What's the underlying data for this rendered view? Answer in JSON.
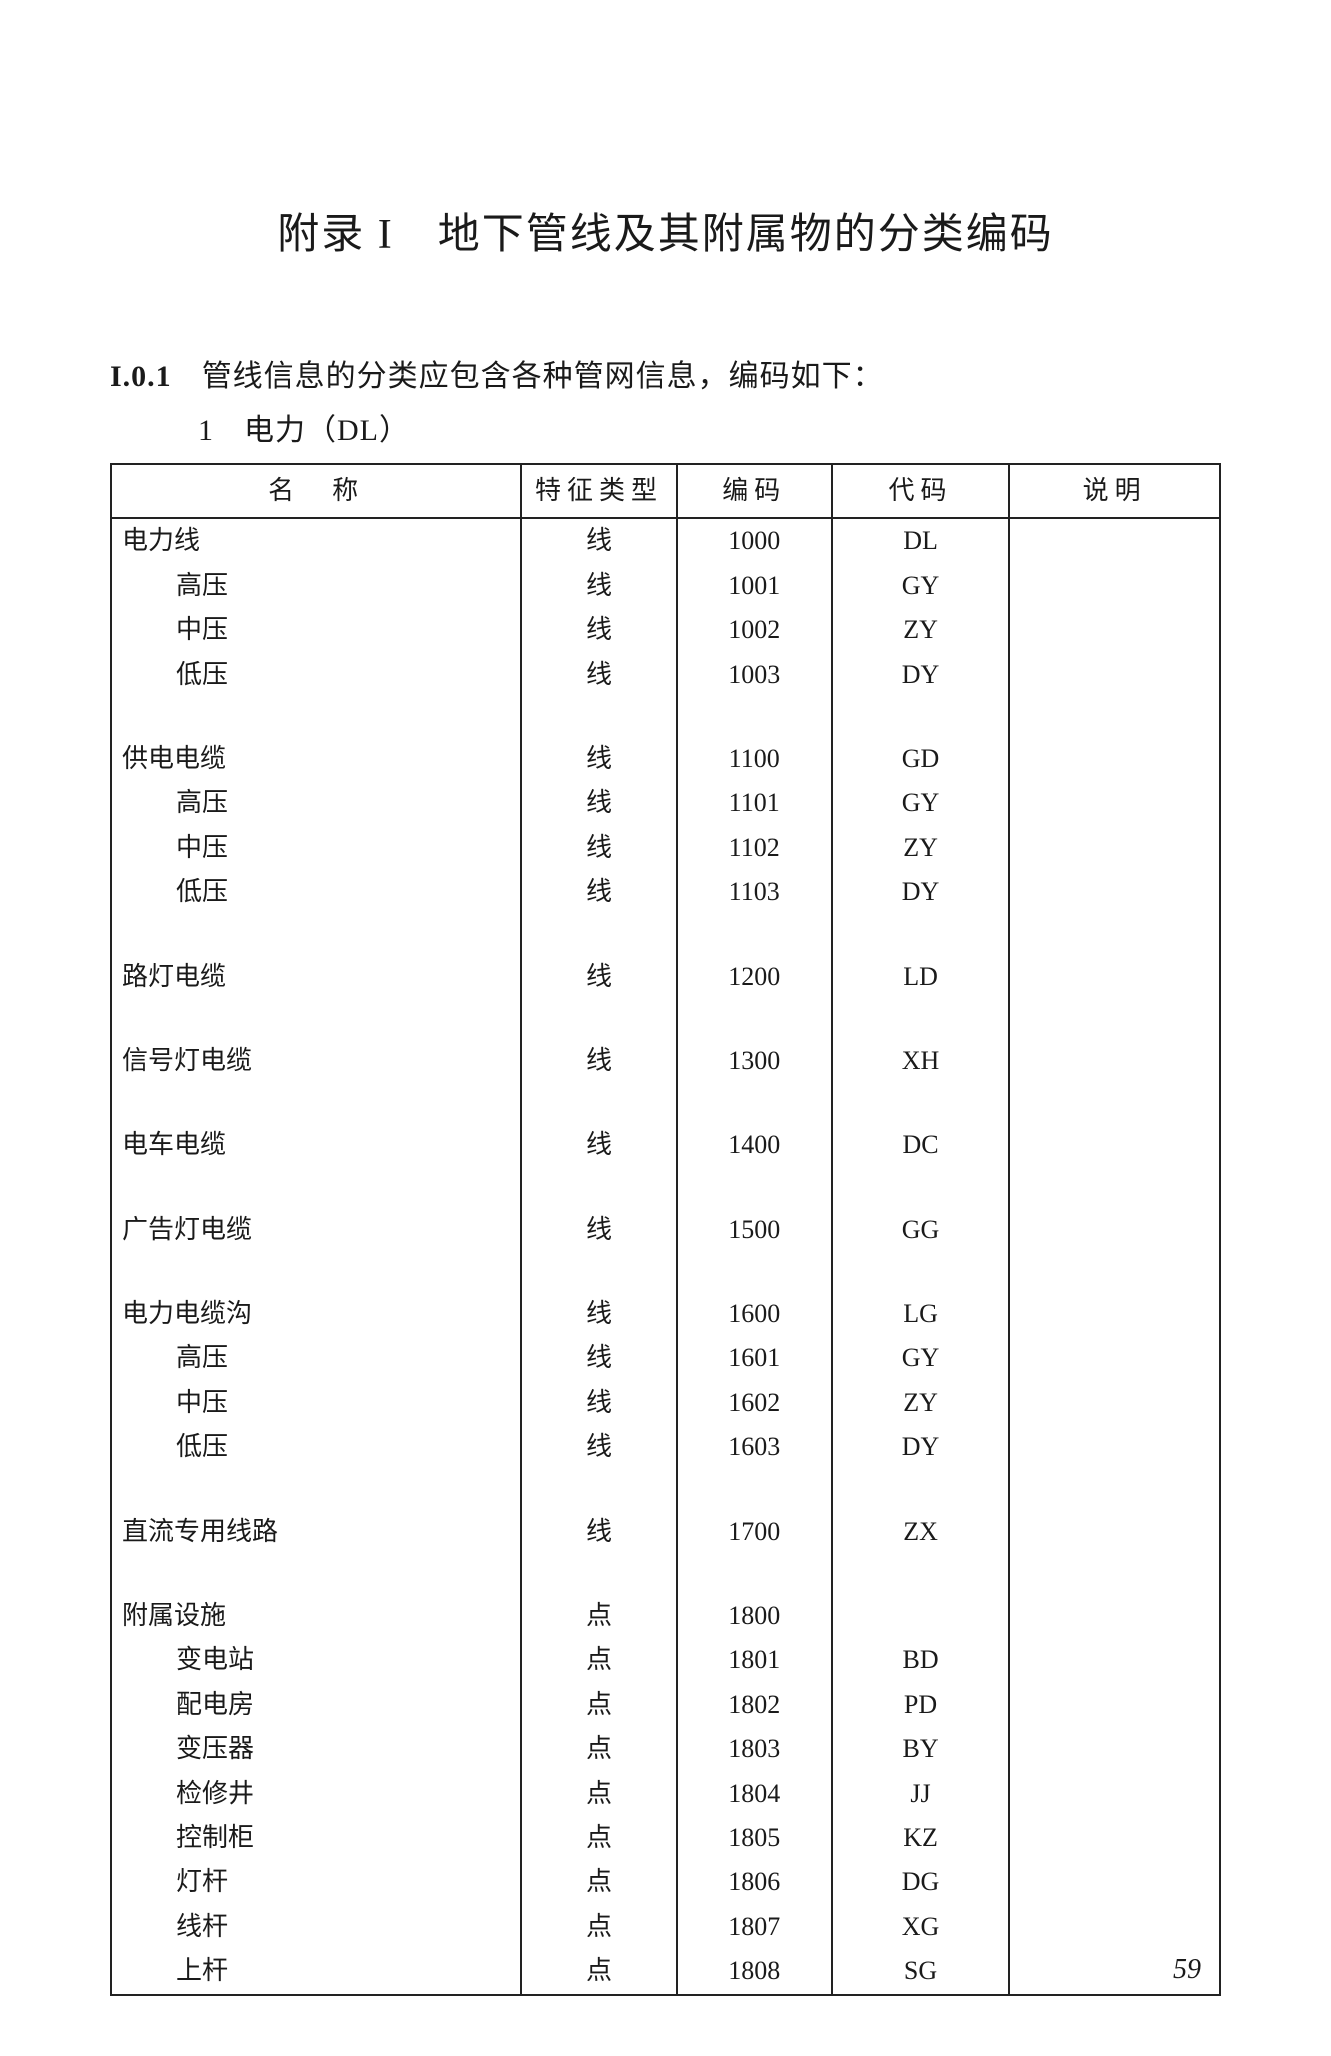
{
  "title": "附录 I　地下管线及其附属物的分类编码",
  "section": {
    "num": "I.0.1",
    "text": "管线信息的分类应包含各种管网信息，编码如下："
  },
  "subsection": {
    "idx": "1",
    "text": "电力（DL）"
  },
  "table": {
    "headers": {
      "name": "名　称",
      "type": "特征类型",
      "code": "编码",
      "sym": "代码",
      "note": "说明"
    },
    "col_widths_pct": {
      "name": 37,
      "type": 14,
      "code": 14,
      "sym": 16,
      "note": 19
    },
    "border_color": "#222222",
    "font_size_pt": 26,
    "groups": [
      {
        "rows": [
          {
            "name": "电力线",
            "indent": 0,
            "type": "线",
            "code": "1000",
            "sym": "DL",
            "note": ""
          },
          {
            "name": "高压",
            "indent": 1,
            "type": "线",
            "code": "1001",
            "sym": "GY",
            "note": ""
          },
          {
            "name": "中压",
            "indent": 1,
            "type": "线",
            "code": "1002",
            "sym": "ZY",
            "note": ""
          },
          {
            "name": "低压",
            "indent": 1,
            "type": "线",
            "code": "1003",
            "sym": "DY",
            "note": ""
          }
        ]
      },
      {
        "rows": [
          {
            "name": "供电电缆",
            "indent": 0,
            "type": "线",
            "code": "1100",
            "sym": "GD",
            "note": ""
          },
          {
            "name": "高压",
            "indent": 1,
            "type": "线",
            "code": "1101",
            "sym": "GY",
            "note": ""
          },
          {
            "name": "中压",
            "indent": 1,
            "type": "线",
            "code": "1102",
            "sym": "ZY",
            "note": ""
          },
          {
            "name": "低压",
            "indent": 1,
            "type": "线",
            "code": "1103",
            "sym": "DY",
            "note": ""
          }
        ]
      },
      {
        "rows": [
          {
            "name": "路灯电缆",
            "indent": 0,
            "type": "线",
            "code": "1200",
            "sym": "LD",
            "note": ""
          }
        ]
      },
      {
        "rows": [
          {
            "name": "信号灯电缆",
            "indent": 0,
            "type": "线",
            "code": "1300",
            "sym": "XH",
            "note": ""
          }
        ]
      },
      {
        "rows": [
          {
            "name": "电车电缆",
            "indent": 0,
            "type": "线",
            "code": "1400",
            "sym": "DC",
            "note": ""
          }
        ]
      },
      {
        "rows": [
          {
            "name": "广告灯电缆",
            "indent": 0,
            "type": "线",
            "code": "1500",
            "sym": "GG",
            "note": ""
          }
        ]
      },
      {
        "rows": [
          {
            "name": "电力电缆沟",
            "indent": 0,
            "type": "线",
            "code": "1600",
            "sym": "LG",
            "note": ""
          },
          {
            "name": "高压",
            "indent": 1,
            "type": "线",
            "code": "1601",
            "sym": "GY",
            "note": ""
          },
          {
            "name": "中压",
            "indent": 1,
            "type": "线",
            "code": "1602",
            "sym": "ZY",
            "note": ""
          },
          {
            "name": "低压",
            "indent": 1,
            "type": "线",
            "code": "1603",
            "sym": "DY",
            "note": ""
          }
        ]
      },
      {
        "rows": [
          {
            "name": "直流专用线路",
            "indent": 0,
            "type": "线",
            "code": "1700",
            "sym": "ZX",
            "note": ""
          }
        ]
      },
      {
        "rows": [
          {
            "name": "附属设施",
            "indent": 0,
            "type": "点",
            "code": "1800",
            "sym": "",
            "note": ""
          },
          {
            "name": "变电站",
            "indent": 1,
            "type": "点",
            "code": "1801",
            "sym": "BD",
            "note": ""
          },
          {
            "name": "配电房",
            "indent": 1,
            "type": "点",
            "code": "1802",
            "sym": "PD",
            "note": ""
          },
          {
            "name": "变压器",
            "indent": 1,
            "type": "点",
            "code": "1803",
            "sym": "BY",
            "note": ""
          },
          {
            "name": "检修井",
            "indent": 1,
            "type": "点",
            "code": "1804",
            "sym": "JJ",
            "note": ""
          },
          {
            "name": "控制柜",
            "indent": 1,
            "type": "点",
            "code": "1805",
            "sym": "KZ",
            "note": ""
          },
          {
            "name": "灯杆",
            "indent": 1,
            "type": "点",
            "code": "1806",
            "sym": "DG",
            "note": ""
          },
          {
            "name": "线杆",
            "indent": 1,
            "type": "点",
            "code": "1807",
            "sym": "XG",
            "note": ""
          },
          {
            "name": "上杆",
            "indent": 1,
            "type": "点",
            "code": "1808",
            "sym": "SG",
            "note": ""
          }
        ]
      }
    ]
  },
  "page_number": "59"
}
